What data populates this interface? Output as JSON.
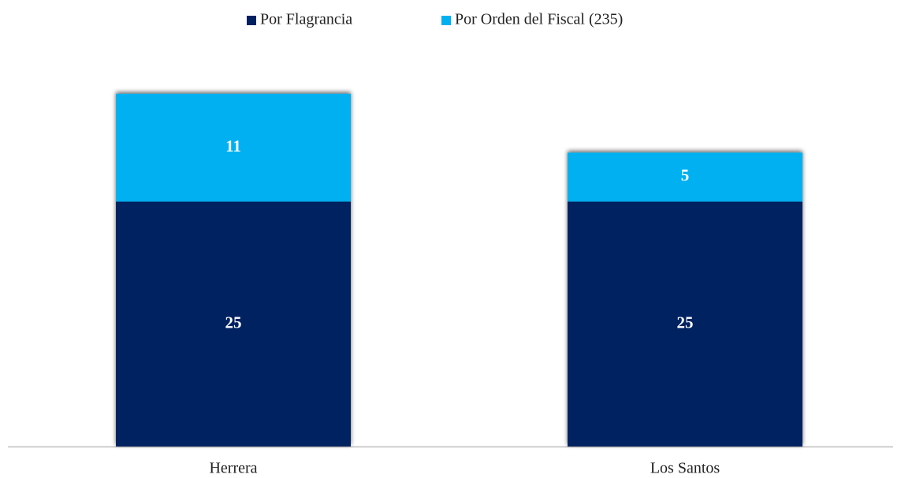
{
  "chart_data": {
    "type": "stacked_bar",
    "categories": [
      "Herrera",
      "Los Santos"
    ],
    "series": [
      {
        "name": "Por Flagrancia",
        "color": "#002060",
        "values": [
          25,
          25
        ]
      },
      {
        "name": "Por Orden del Fiscal (235)",
        "color": "#00b0f0",
        "values": [
          11,
          5
        ]
      }
    ],
    "legend": "top"
  }
}
